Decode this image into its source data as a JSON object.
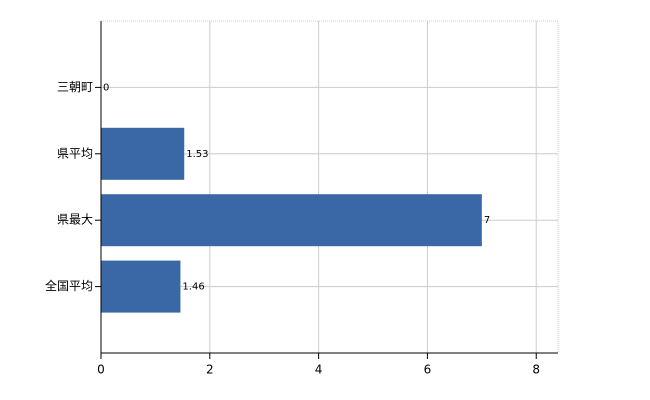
{
  "chart_data": {
    "type": "hbar",
    "categories": [
      "三朝町",
      "県平均",
      "県最大",
      "全国平均"
    ],
    "values": [
      0,
      1.53,
      7,
      1.46
    ],
    "color": "#3a67a5",
    "xlim": [
      0,
      8.4
    ],
    "xticks": [
      0,
      2,
      4,
      6,
      8
    ],
    "grid": true
  }
}
